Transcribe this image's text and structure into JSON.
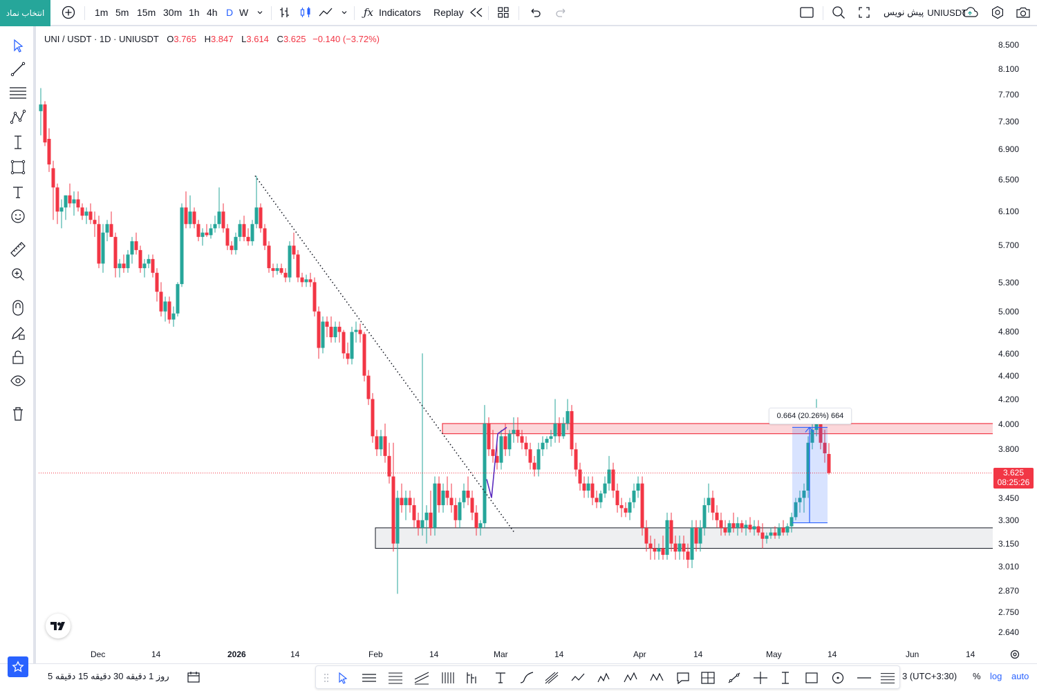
{
  "topbar": {
    "symbol_search": "انتخاب نماد",
    "intervals": [
      "1m",
      "5m",
      "15m",
      "30m",
      "1h",
      "4h",
      "D",
      "W"
    ],
    "active_interval": "D",
    "indicators_label": "Indicators",
    "replay_label": "Replay",
    "symbol_name": "UNIUSDT",
    "draft_label": "پیش نویس"
  },
  "legend": {
    "symbol": "UNI / USDT · 1D · UNIUSDT",
    "o_key": "O",
    "o_val": "3.765",
    "h_key": "H",
    "h_val": "3.847",
    "l_key": "L",
    "l_val": "3.614",
    "c_key": "C",
    "c_val": "3.625",
    "change": "−0.140 (−3.72%)"
  },
  "price_axis": {
    "labels": [
      "8.500",
      "8.100",
      "7.700",
      "7.300",
      "6.900",
      "6.500",
      "6.100",
      "5.700",
      "5.300",
      "5.000",
      "4.800",
      "4.600",
      "4.400",
      "4.200",
      "4.000",
      "3.800",
      "3.450",
      "3.300",
      "3.150",
      "3.010",
      "2.870",
      "2.750",
      "2.640"
    ],
    "current_price": "3.625",
    "countdown": "08:25:26"
  },
  "time_axis": {
    "labels": [
      "Dec",
      "14",
      "2026",
      "14",
      "Feb",
      "14",
      "Mar",
      "14",
      "Apr",
      "14",
      "May",
      "14",
      "Jun",
      "14"
    ]
  },
  "measure": {
    "label": "0.664 (20.26%) 664"
  },
  "bottombar": {
    "ranges": [
      "5 دقیقه",
      "15 دقیقه",
      "30 دقیقه",
      "1 روز"
    ],
    "timezone": "3 (UTC+3:30)",
    "percent": "%",
    "log": "log",
    "auto": "auto"
  },
  "colors": {
    "up": "#26a69a",
    "down": "#f23645",
    "accent": "#2962ff"
  },
  "chart_data": {
    "type": "candlestick",
    "symbol": "UNI / USDT · 1D · UNIUSDT",
    "scale": "log",
    "x": "2025-11-18 .. 2026-05-12 (daily)",
    "ylim": [
      2.6,
      8.6
    ],
    "last": {
      "open": 3.765,
      "high": 3.847,
      "low": 3.614,
      "close": 3.625
    },
    "annotations": [
      {
        "type": "resistance-zone",
        "from": 3.93,
        "to": 4.02
      },
      {
        "type": "support-zone",
        "from": 3.12,
        "to": 3.25
      },
      {
        "type": "trendline",
        "style": "dotted"
      },
      {
        "type": "price-range",
        "label": "0.664 (20.26%) 664"
      }
    ]
  }
}
